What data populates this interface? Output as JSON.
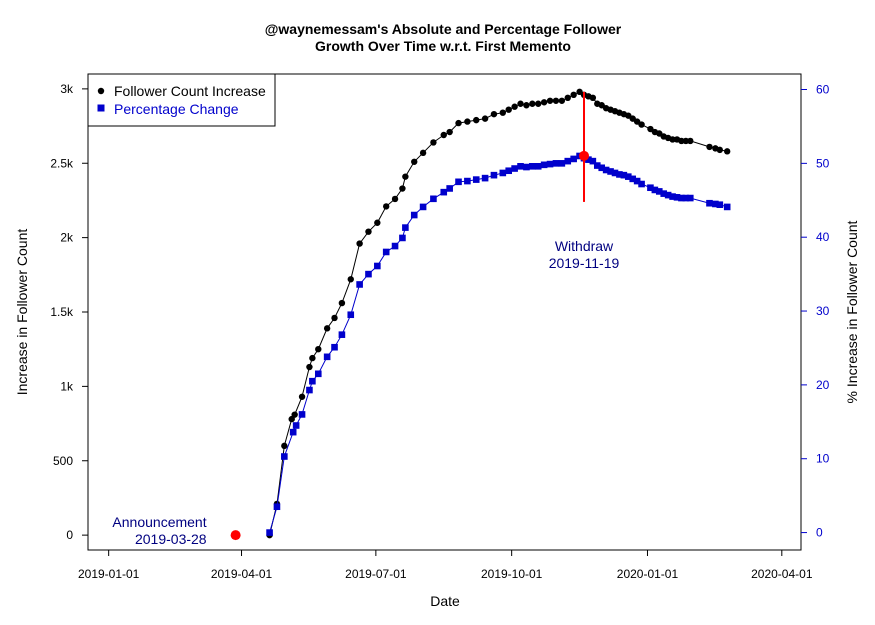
{
  "chart_data": {
    "type": "line",
    "title_line1": "@waynemessam's Absolute and Percentage Follower",
    "title_line2": "Growth Over Time w.r.t. First Memento",
    "xlabel": "Date",
    "ylabel_left": "Increase in Follower Count",
    "ylabel_right": "% Increase in Follower Count",
    "xlim": [
      "2018-12-18",
      "2020-04-14"
    ],
    "ylim_left": [
      -100,
      3100
    ],
    "ylim_right": [
      -2.36,
      62.1
    ],
    "x_ticks": [
      "2019-01-01",
      "2019-04-01",
      "2019-07-01",
      "2019-10-01",
      "2020-01-01",
      "2020-04-01"
    ],
    "y_ticks_left": [
      {
        "value": 0,
        "label": "0"
      },
      {
        "value": 500,
        "label": "500"
      },
      {
        "value": 1000,
        "label": "1k"
      },
      {
        "value": 1500,
        "label": "1.5k"
      },
      {
        "value": 2000,
        "label": "2k"
      },
      {
        "value": 2500,
        "label": "2.5k"
      },
      {
        "value": 3000,
        "label": "3k"
      }
    ],
    "y_ticks_right": [
      0,
      10,
      20,
      30,
      40,
      50,
      60
    ],
    "colors": {
      "follower": "#000000",
      "percentage": "#0000cc",
      "event": "#ff0000",
      "annotation": "#000080",
      "right_axis": "#0000cc"
    },
    "legend_position": "top-left",
    "series": [
      {
        "name": "Follower Count Increase",
        "axis": "left",
        "marker": "circle",
        "color": "#000000",
        "points": [
          [
            "2019-04-20",
            0
          ],
          [
            "2019-04-25",
            210
          ],
          [
            "2019-04-30",
            600
          ],
          [
            "2019-05-05",
            780
          ],
          [
            "2019-05-07",
            810
          ],
          [
            "2019-05-12",
            930
          ],
          [
            "2019-05-17",
            1130
          ],
          [
            "2019-05-19",
            1190
          ],
          [
            "2019-05-23",
            1250
          ],
          [
            "2019-05-29",
            1390
          ],
          [
            "2019-06-03",
            1460
          ],
          [
            "2019-06-08",
            1560
          ],
          [
            "2019-06-14",
            1720
          ],
          [
            "2019-06-20",
            1960
          ],
          [
            "2019-06-26",
            2040
          ],
          [
            "2019-07-02",
            2100
          ],
          [
            "2019-07-08",
            2210
          ],
          [
            "2019-07-14",
            2260
          ],
          [
            "2019-07-19",
            2330
          ],
          [
            "2019-07-21",
            2410
          ],
          [
            "2019-07-27",
            2510
          ],
          [
            "2019-08-02",
            2570
          ],
          [
            "2019-08-09",
            2640
          ],
          [
            "2019-08-16",
            2690
          ],
          [
            "2019-08-20",
            2710
          ],
          [
            "2019-08-26",
            2770
          ],
          [
            "2019-09-01",
            2780
          ],
          [
            "2019-09-07",
            2790
          ],
          [
            "2019-09-13",
            2800
          ],
          [
            "2019-09-19",
            2830
          ],
          [
            "2019-09-25",
            2840
          ],
          [
            "2019-09-29",
            2860
          ],
          [
            "2019-10-03",
            2880
          ],
          [
            "2019-10-07",
            2900
          ],
          [
            "2019-10-11",
            2890
          ],
          [
            "2019-10-15",
            2900
          ],
          [
            "2019-10-19",
            2900
          ],
          [
            "2019-10-23",
            2910
          ],
          [
            "2019-10-27",
            2920
          ],
          [
            "2019-10-31",
            2920
          ],
          [
            "2019-11-04",
            2920
          ],
          [
            "2019-11-08",
            2940
          ],
          [
            "2019-11-12",
            2960
          ],
          [
            "2019-11-16",
            2980
          ],
          [
            "2019-11-19",
            2960
          ],
          [
            "2019-11-22",
            2950
          ],
          [
            "2019-11-25",
            2940
          ],
          [
            "2019-11-28",
            2900
          ],
          [
            "2019-12-01",
            2890
          ],
          [
            "2019-12-04",
            2870
          ],
          [
            "2019-12-07",
            2860
          ],
          [
            "2019-12-10",
            2850
          ],
          [
            "2019-12-13",
            2840
          ],
          [
            "2019-12-16",
            2830
          ],
          [
            "2019-12-19",
            2820
          ],
          [
            "2019-12-22",
            2800
          ],
          [
            "2019-12-25",
            2780
          ],
          [
            "2019-12-28",
            2760
          ],
          [
            "2020-01-03",
            2730
          ],
          [
            "2020-01-06",
            2710
          ],
          [
            "2020-01-09",
            2700
          ],
          [
            "2020-01-12",
            2680
          ],
          [
            "2020-01-15",
            2670
          ],
          [
            "2020-01-18",
            2660
          ],
          [
            "2020-01-21",
            2660
          ],
          [
            "2020-01-24",
            2650
          ],
          [
            "2020-01-27",
            2650
          ],
          [
            "2020-01-30",
            2650
          ],
          [
            "2020-02-12",
            2610
          ],
          [
            "2020-02-16",
            2600
          ],
          [
            "2020-02-19",
            2590
          ],
          [
            "2020-02-24",
            2580
          ]
        ]
      },
      {
        "name": "Percentage Change",
        "axis": "right",
        "marker": "square",
        "color": "#0000cc",
        "points": [
          [
            "2019-04-20",
            0
          ],
          [
            "2019-04-25",
            3.5
          ],
          [
            "2019-04-30",
            10.3
          ],
          [
            "2019-05-06",
            13.6
          ],
          [
            "2019-05-08",
            14.5
          ],
          [
            "2019-05-12",
            16
          ],
          [
            "2019-05-17",
            19.3
          ],
          [
            "2019-05-19",
            20.5
          ],
          [
            "2019-05-23",
            21.5
          ],
          [
            "2019-05-29",
            23.8
          ],
          [
            "2019-06-03",
            25.1
          ],
          [
            "2019-06-08",
            26.8
          ],
          [
            "2019-06-14",
            29.5
          ],
          [
            "2019-06-20",
            33.6
          ],
          [
            "2019-06-26",
            35
          ],
          [
            "2019-07-02",
            36.1
          ],
          [
            "2019-07-08",
            38
          ],
          [
            "2019-07-14",
            38.8
          ],
          [
            "2019-07-19",
            39.9
          ],
          [
            "2019-07-21",
            41.3
          ],
          [
            "2019-07-27",
            43
          ],
          [
            "2019-08-02",
            44.1
          ],
          [
            "2019-08-09",
            45.2
          ],
          [
            "2019-08-16",
            46.1
          ],
          [
            "2019-08-20",
            46.6
          ],
          [
            "2019-08-26",
            47.5
          ],
          [
            "2019-09-01",
            47.6
          ],
          [
            "2019-09-07",
            47.8
          ],
          [
            "2019-09-13",
            48
          ],
          [
            "2019-09-19",
            48.4
          ],
          [
            "2019-09-25",
            48.7
          ],
          [
            "2019-09-29",
            49
          ],
          [
            "2019-10-03",
            49.3
          ],
          [
            "2019-10-07",
            49.6
          ],
          [
            "2019-10-11",
            49.5
          ],
          [
            "2019-10-15",
            49.6
          ],
          [
            "2019-10-19",
            49.6
          ],
          [
            "2019-10-23",
            49.8
          ],
          [
            "2019-10-27",
            49.9
          ],
          [
            "2019-10-31",
            50
          ],
          [
            "2019-11-04",
            50
          ],
          [
            "2019-11-08",
            50.3
          ],
          [
            "2019-11-12",
            50.6
          ],
          [
            "2019-11-16",
            51
          ],
          [
            "2019-11-19",
            50.7
          ],
          [
            "2019-11-22",
            50.5
          ],
          [
            "2019-11-25",
            50.3
          ],
          [
            "2019-11-28",
            49.7
          ],
          [
            "2019-12-01",
            49.4
          ],
          [
            "2019-12-04",
            49.1
          ],
          [
            "2019-12-07",
            48.9
          ],
          [
            "2019-12-10",
            48.7
          ],
          [
            "2019-12-13",
            48.5
          ],
          [
            "2019-12-16",
            48.4
          ],
          [
            "2019-12-19",
            48.2
          ],
          [
            "2019-12-22",
            47.9
          ],
          [
            "2019-12-25",
            47.6
          ],
          [
            "2019-12-28",
            47.2
          ],
          [
            "2020-01-03",
            46.7
          ],
          [
            "2020-01-06",
            46.4
          ],
          [
            "2020-01-09",
            46.2
          ],
          [
            "2020-01-12",
            45.9
          ],
          [
            "2020-01-15",
            45.7
          ],
          [
            "2020-01-18",
            45.5
          ],
          [
            "2020-01-21",
            45.4
          ],
          [
            "2020-01-24",
            45.3
          ],
          [
            "2020-01-27",
            45.3
          ],
          [
            "2020-01-30",
            45.3
          ],
          [
            "2020-02-12",
            44.6
          ],
          [
            "2020-02-16",
            44.5
          ],
          [
            "2020-02-19",
            44.4
          ],
          [
            "2020-02-24",
            44.1
          ]
        ]
      }
    ],
    "events": [
      {
        "label": "Announcement",
        "date_label": "2019-03-28",
        "x": "2019-03-28",
        "y": 0
      },
      {
        "label": "Withdraw",
        "date_label": "2019-11-19",
        "x": "2019-11-19",
        "y": 2550,
        "line_from": 2240,
        "line_to": 2980
      }
    ]
  }
}
